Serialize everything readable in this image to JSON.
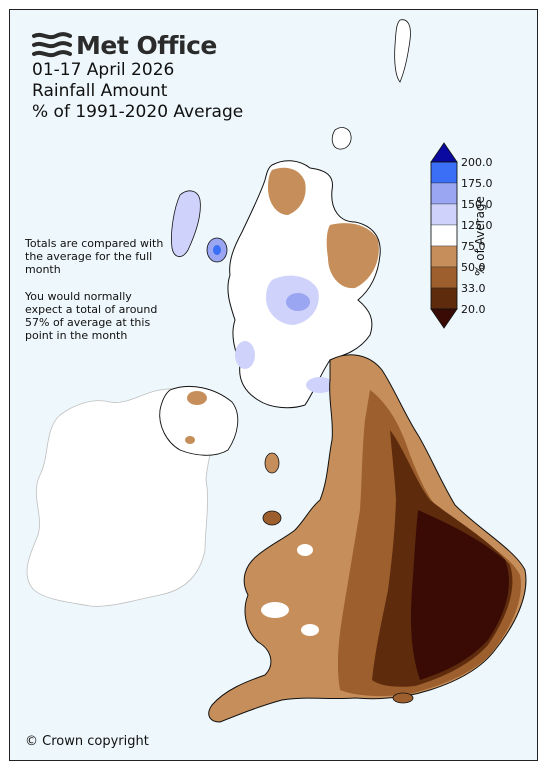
{
  "brand": {
    "name": "Met Office",
    "logo_icon": "met-office-wave-logo"
  },
  "titles": {
    "period": "01-17 April 2026",
    "variable": "Rainfall Amount",
    "measure": "% of 1991-2020 Average"
  },
  "note": {
    "line1": "Totals are compared with the average for the full month",
    "line2": "You would normally expect a total of around 57% of average at this point in the month"
  },
  "legend": {
    "title": "% of Average",
    "ticks": [
      "200.0",
      "175.0",
      "150.0",
      "125.0",
      "75.0",
      "50.0",
      "33.0",
      "20.0"
    ],
    "colors": [
      "#0a0aa0",
      "#3b6ff5",
      "#9aa6f2",
      "#cfd3fb",
      "#ffffff",
      "#c68e5a",
      "#9c5f2d",
      "#5e2c0d",
      "#3a0b04"
    ]
  },
  "copyright": "© Crown copyright",
  "colors": {
    "background": "#eef7fb",
    "ireland_land": "#ffffff",
    "very_dry": "#3a0b04",
    "dry": "#5e2c0d",
    "below": "#9c5f2d",
    "slightly_below": "#c68e5a",
    "normal": "#ffffff",
    "wet": "#cfd3fb",
    "wetter": "#9aa6f2"
  }
}
